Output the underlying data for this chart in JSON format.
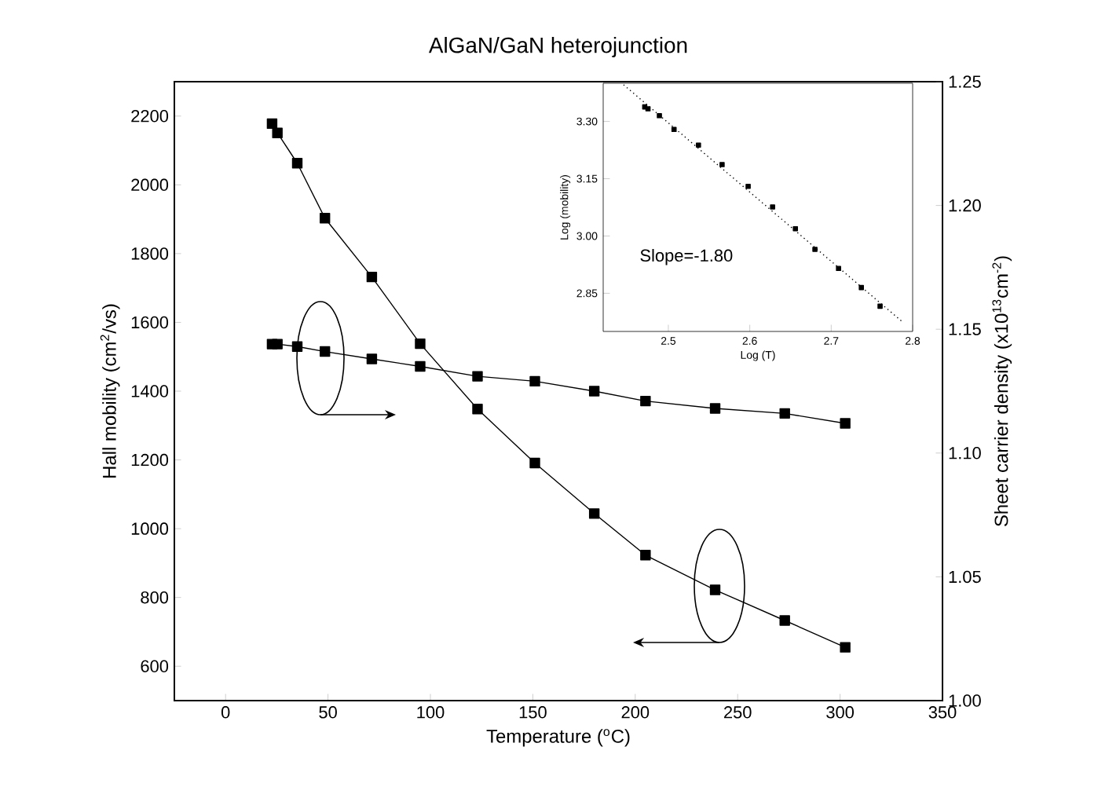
{
  "chart_data": [
    {
      "type": "line",
      "title": "AlGaN/GaN heterojunction",
      "xlabel": "Temperature ($^{o}$C)",
      "ylabel": "Hall mobility (cm$^{2}$/vs)",
      "y2label": "Sheet carrier density (x10$^{13}$cm$^{-2}$)",
      "x": [
        22.7,
        25.3,
        35,
        48.5,
        71.4,
        95,
        123,
        151,
        180,
        205,
        239,
        273,
        302.5
      ],
      "series": [
        {
          "color": "#000000",
          "values": [
            2178,
            2151,
            2063,
            1903,
            1732,
            1538,
            1348,
            1191,
            1044,
            923,
            822,
            733,
            655
          ]
        },
        {
          "color": "#000000",
          "axis": "y2",
          "values": [
            1.144,
            1.144,
            1.143,
            1.141,
            1.138,
            1.135,
            1.131,
            1.129,
            1.125,
            1.121,
            1.118,
            1.116,
            1.112
          ]
        }
      ],
      "xlim": [
        -25,
        350
      ],
      "xticks": [
        0,
        50,
        100,
        150,
        200,
        250,
        300,
        350
      ],
      "ylim": [
        500,
        2300
      ],
      "yticks": [
        600,
        800,
        1000,
        1200,
        1400,
        1600,
        1800,
        2000,
        2200
      ],
      "y2lim": [
        1.0,
        1.25
      ],
      "y2ticks": [
        {
          "value": 1.0,
          "label": "1.00"
        },
        {
          "value": 1.05,
          "label": "1.05"
        },
        {
          "value": 1.1,
          "label": "1.10"
        },
        {
          "value": 1.15,
          "label": "1.15"
        },
        {
          "value": 1.2,
          "label": "1.20"
        },
        {
          "value": 1.25,
          "label": "1.25"
        }
      ],
      "marker": "square",
      "line_style": "solid"
    },
    {
      "type": "scatter",
      "xlabel": "Log (T)",
      "ylabel": "Log (mobility)",
      "annotations": [
        "Slope=-1.80"
      ],
      "series": [
        {
          "color": "#000000",
          "x": [
            2.471,
            2.475,
            2.489,
            2.507,
            2.537,
            2.566,
            2.598,
            2.628,
            2.656,
            2.68,
            2.709,
            2.737,
            2.76
          ],
          "values": [
            3.338,
            3.333,
            3.315,
            3.279,
            3.238,
            3.187,
            3.13,
            3.076,
            3.019,
            2.965,
            2.915,
            2.865,
            2.816
          ]
        },
        {
          "type": "line",
          "color": "#000000",
          "marker": "none",
          "line_style": "dotted",
          "x": [
            2.445,
            2.787
          ],
          "values": [
            3.396,
            2.776
          ]
        }
      ],
      "xlim": [
        2.42,
        2.8
      ],
      "xticks": [
        2.5,
        2.6,
        2.7,
        2.8
      ],
      "ylim": [
        2.75,
        3.4
      ],
      "yticks": [
        2.85,
        {
          "value": 3.0,
          "label": "3.00"
        },
        3.15,
        {
          "value": 3.3,
          "label": "3.30"
        }
      ],
      "marker": "square"
    }
  ]
}
